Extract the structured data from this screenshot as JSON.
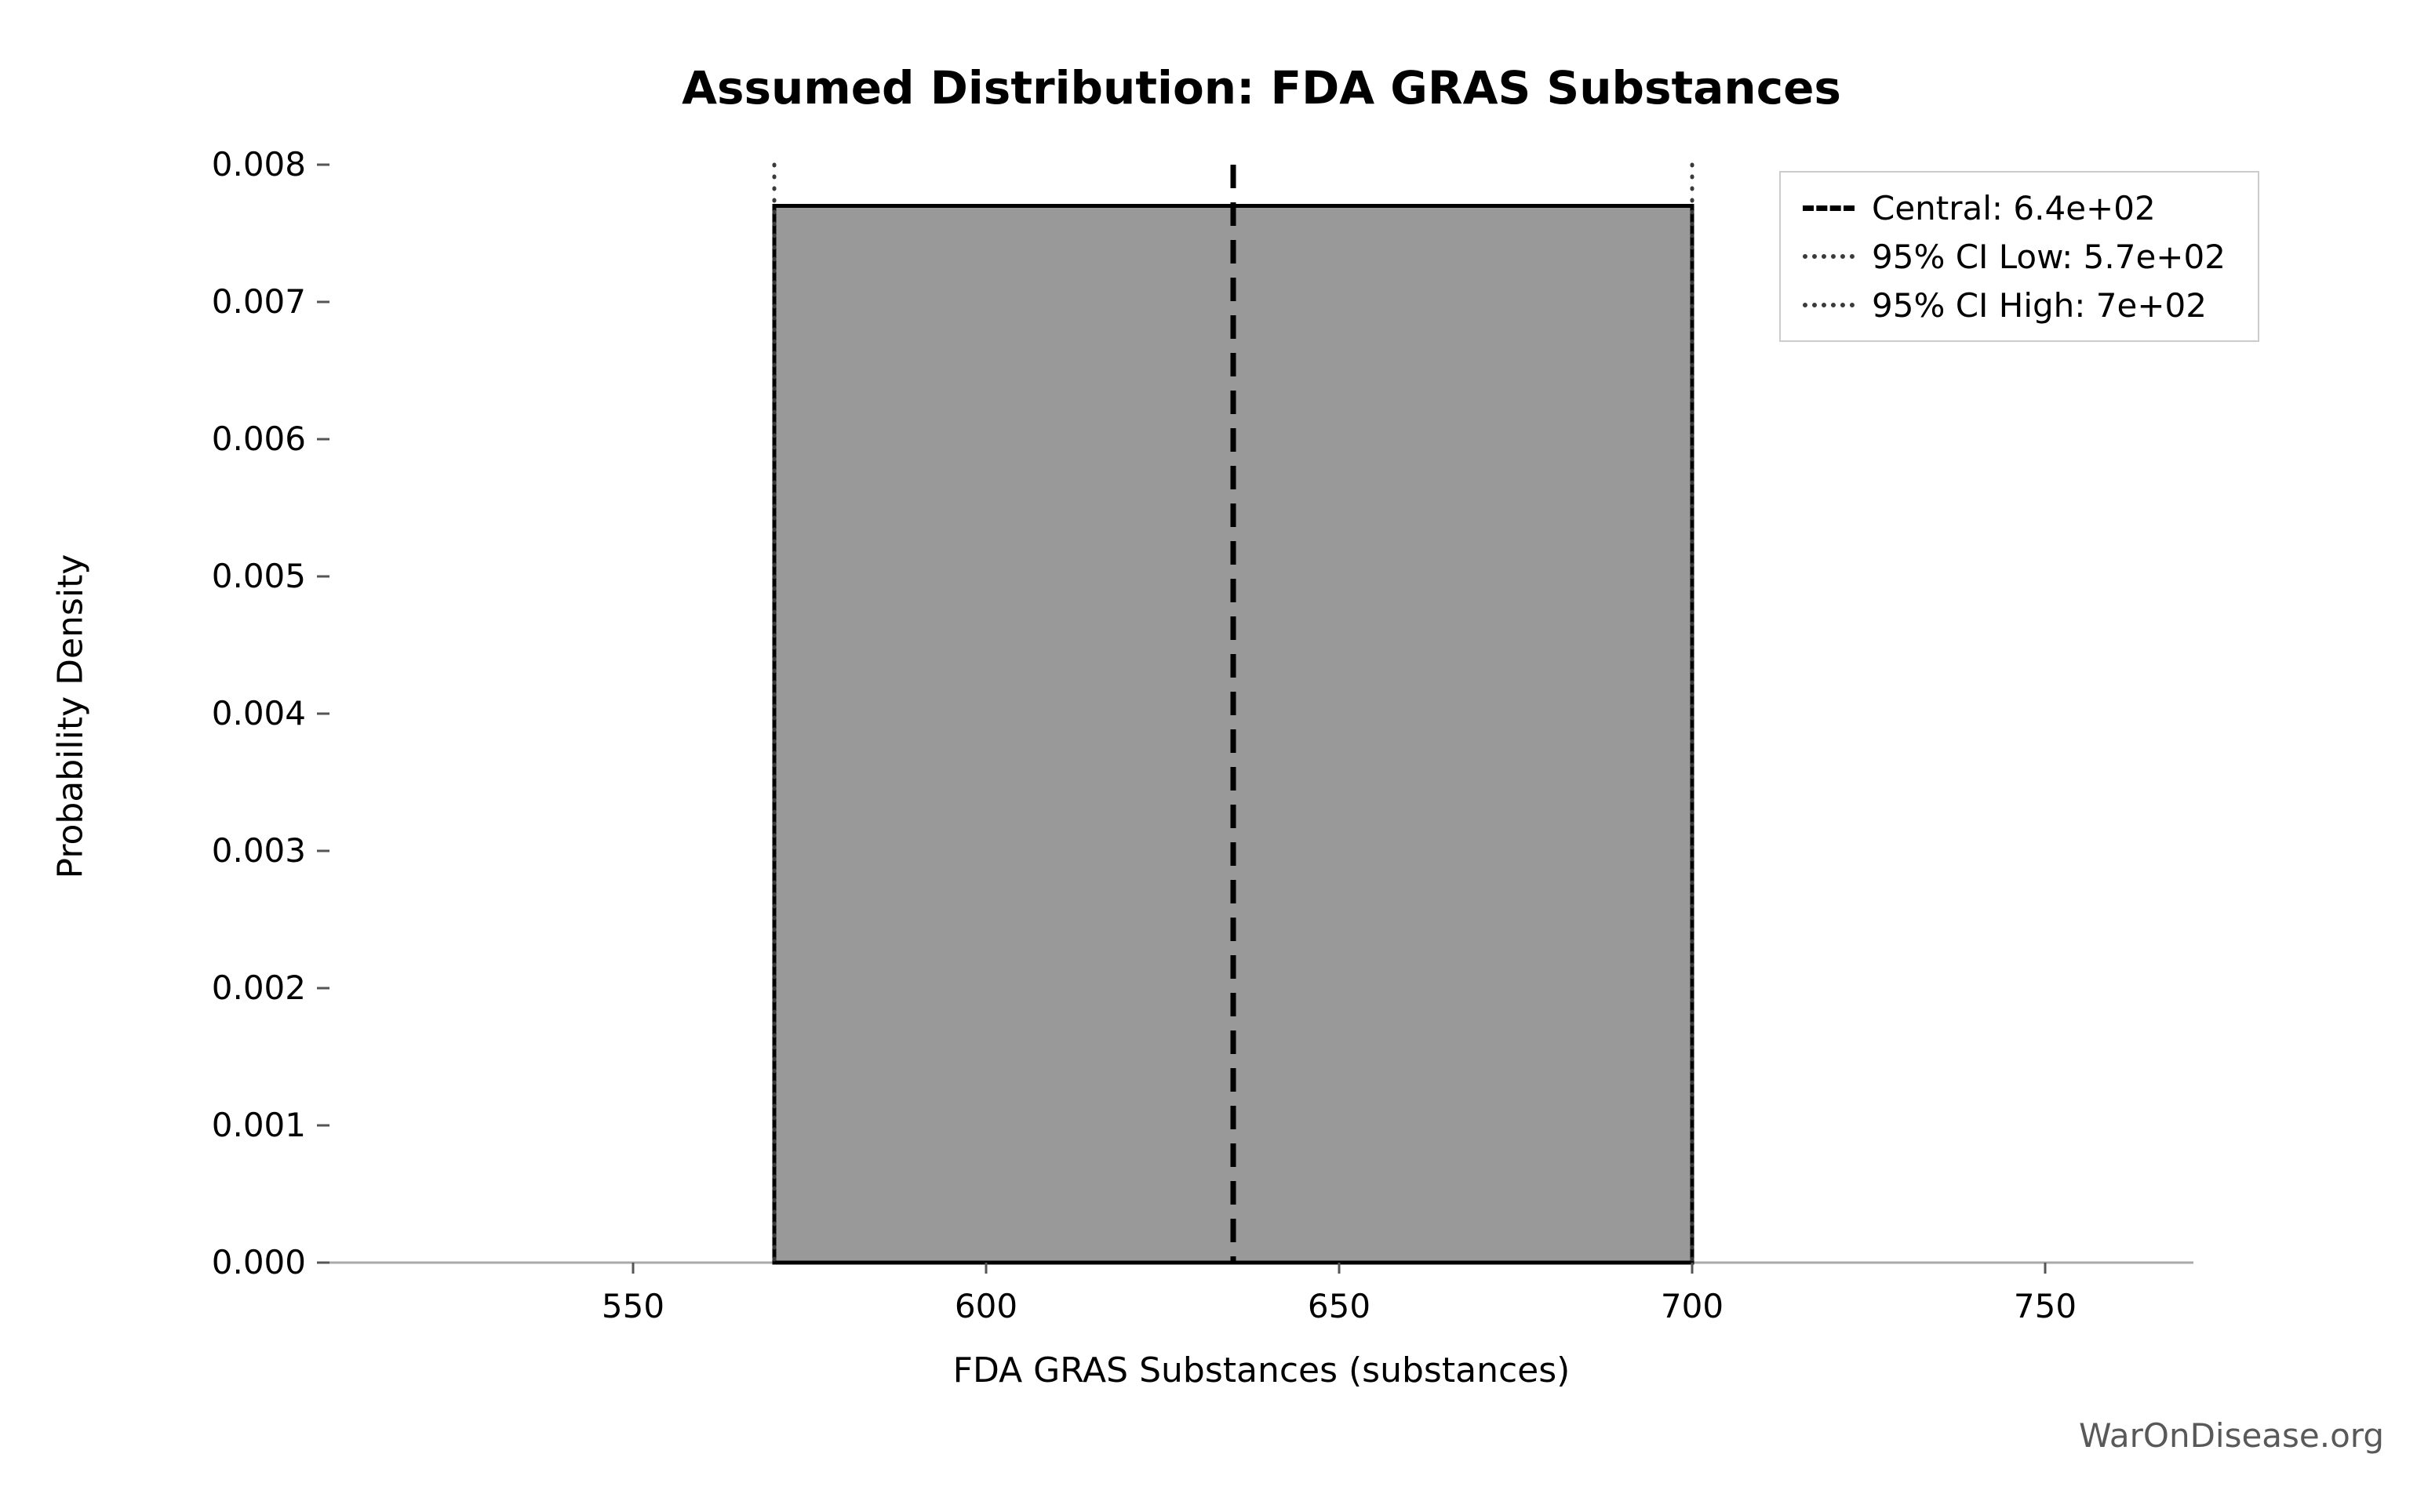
{
  "chart_data": {
    "type": "area",
    "subtype": "uniform-pdf",
    "title": "Assumed Distribution: FDA GRAS Substances",
    "xlabel": "FDA GRAS Substances (substances)",
    "ylabel": "Probability Density",
    "xlim": [
      507,
      771
    ],
    "ylim": [
      0,
      0.008
    ],
    "x_ticks": [
      {
        "value": 550,
        "label": "550"
      },
      {
        "value": 600,
        "label": "600"
      },
      {
        "value": 650,
        "label": "650"
      },
      {
        "value": 700,
        "label": "700"
      },
      {
        "value": 750,
        "label": "750"
      }
    ],
    "y_ticks": [
      {
        "value": 0.0,
        "label": "0.000"
      },
      {
        "value": 0.001,
        "label": "0.001"
      },
      {
        "value": 0.002,
        "label": "0.002"
      },
      {
        "value": 0.003,
        "label": "0.003"
      },
      {
        "value": 0.004,
        "label": "0.004"
      },
      {
        "value": 0.005,
        "label": "0.005"
      },
      {
        "value": 0.006,
        "label": "0.006"
      },
      {
        "value": 0.007,
        "label": "0.007"
      },
      {
        "value": 0.008,
        "label": "0.008"
      }
    ],
    "distribution": {
      "shape": "uniform",
      "low": 570,
      "high": 700,
      "density": 0.0077
    },
    "central": {
      "value": 635,
      "label": "Central: 6.4e+02"
    },
    "ci_low": {
      "value": 570,
      "label": "95% CI Low: 5.7e+02"
    },
    "ci_high": {
      "value": 700,
      "label": "95% CI High: 7e+02"
    },
    "legend": {
      "position": "upper right",
      "entries": [
        {
          "label": "Central: 6.4e+02",
          "style": "dashed"
        },
        {
          "label": "95% CI Low: 5.7e+02",
          "style": "dotted"
        },
        {
          "label": "95% CI High: 7e+02",
          "style": "dotted"
        }
      ]
    },
    "grid": false,
    "watermark": "WarOnDisease.org",
    "colors": {
      "fill": "#999999",
      "edge": "#000000",
      "central_line": "#000000",
      "ci_line": "#3a3a3a",
      "spine": "#aaaaaa",
      "tick_mark": "#555555",
      "tick_text": "#000000",
      "watermark": "#595959"
    }
  }
}
